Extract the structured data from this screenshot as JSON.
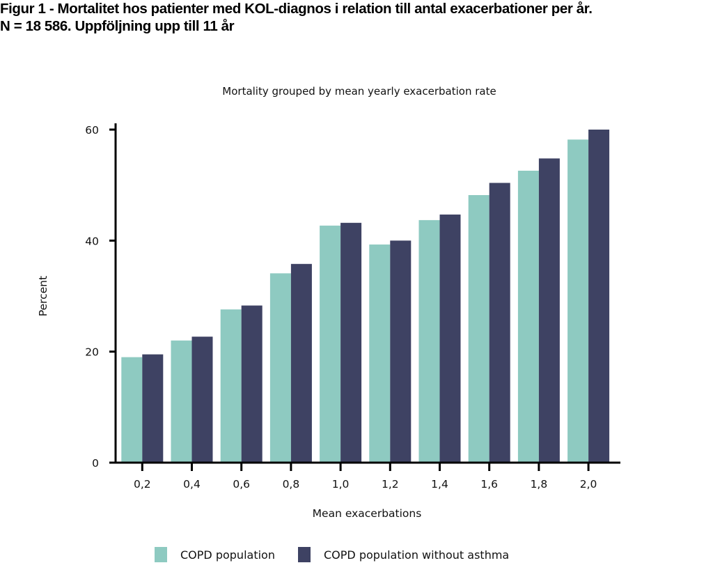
{
  "figure": {
    "title_line1": "Figur 1 - Mortalitet hos patienter med KOL-diagnos i relation till antal exacerbationer per år.",
    "title_line2": "N = 18 586. Uppföljning upp till 11 år"
  },
  "chart_data": {
    "type": "bar",
    "title": "Mortality grouped by mean yearly exacerbation rate",
    "xlabel": "Mean exacerbations",
    "ylabel": "Percent",
    "categories": [
      "0,2",
      "0,4",
      "0,6",
      "0,8",
      "1,0",
      "1,2",
      "1,4",
      "1,6",
      "1,8",
      "2,0"
    ],
    "ylim": [
      0,
      60
    ],
    "yticks": [
      0,
      20,
      40,
      60
    ],
    "ytick_labels": [
      "0",
      "20",
      "40",
      "60"
    ],
    "grid": false,
    "legend_position": "bottom",
    "series": [
      {
        "name": "COPD population",
        "color": "#8ecac1",
        "values": [
          19.0,
          22.0,
          27.6,
          34.1,
          42.7,
          39.3,
          43.7,
          48.2,
          52.6,
          58.2
        ]
      },
      {
        "name": "COPD population without asthma",
        "color": "#3e4263",
        "values": [
          19.5,
          22.7,
          28.3,
          35.8,
          43.2,
          40.0,
          44.7,
          50.4,
          54.8,
          60.0
        ]
      }
    ]
  }
}
